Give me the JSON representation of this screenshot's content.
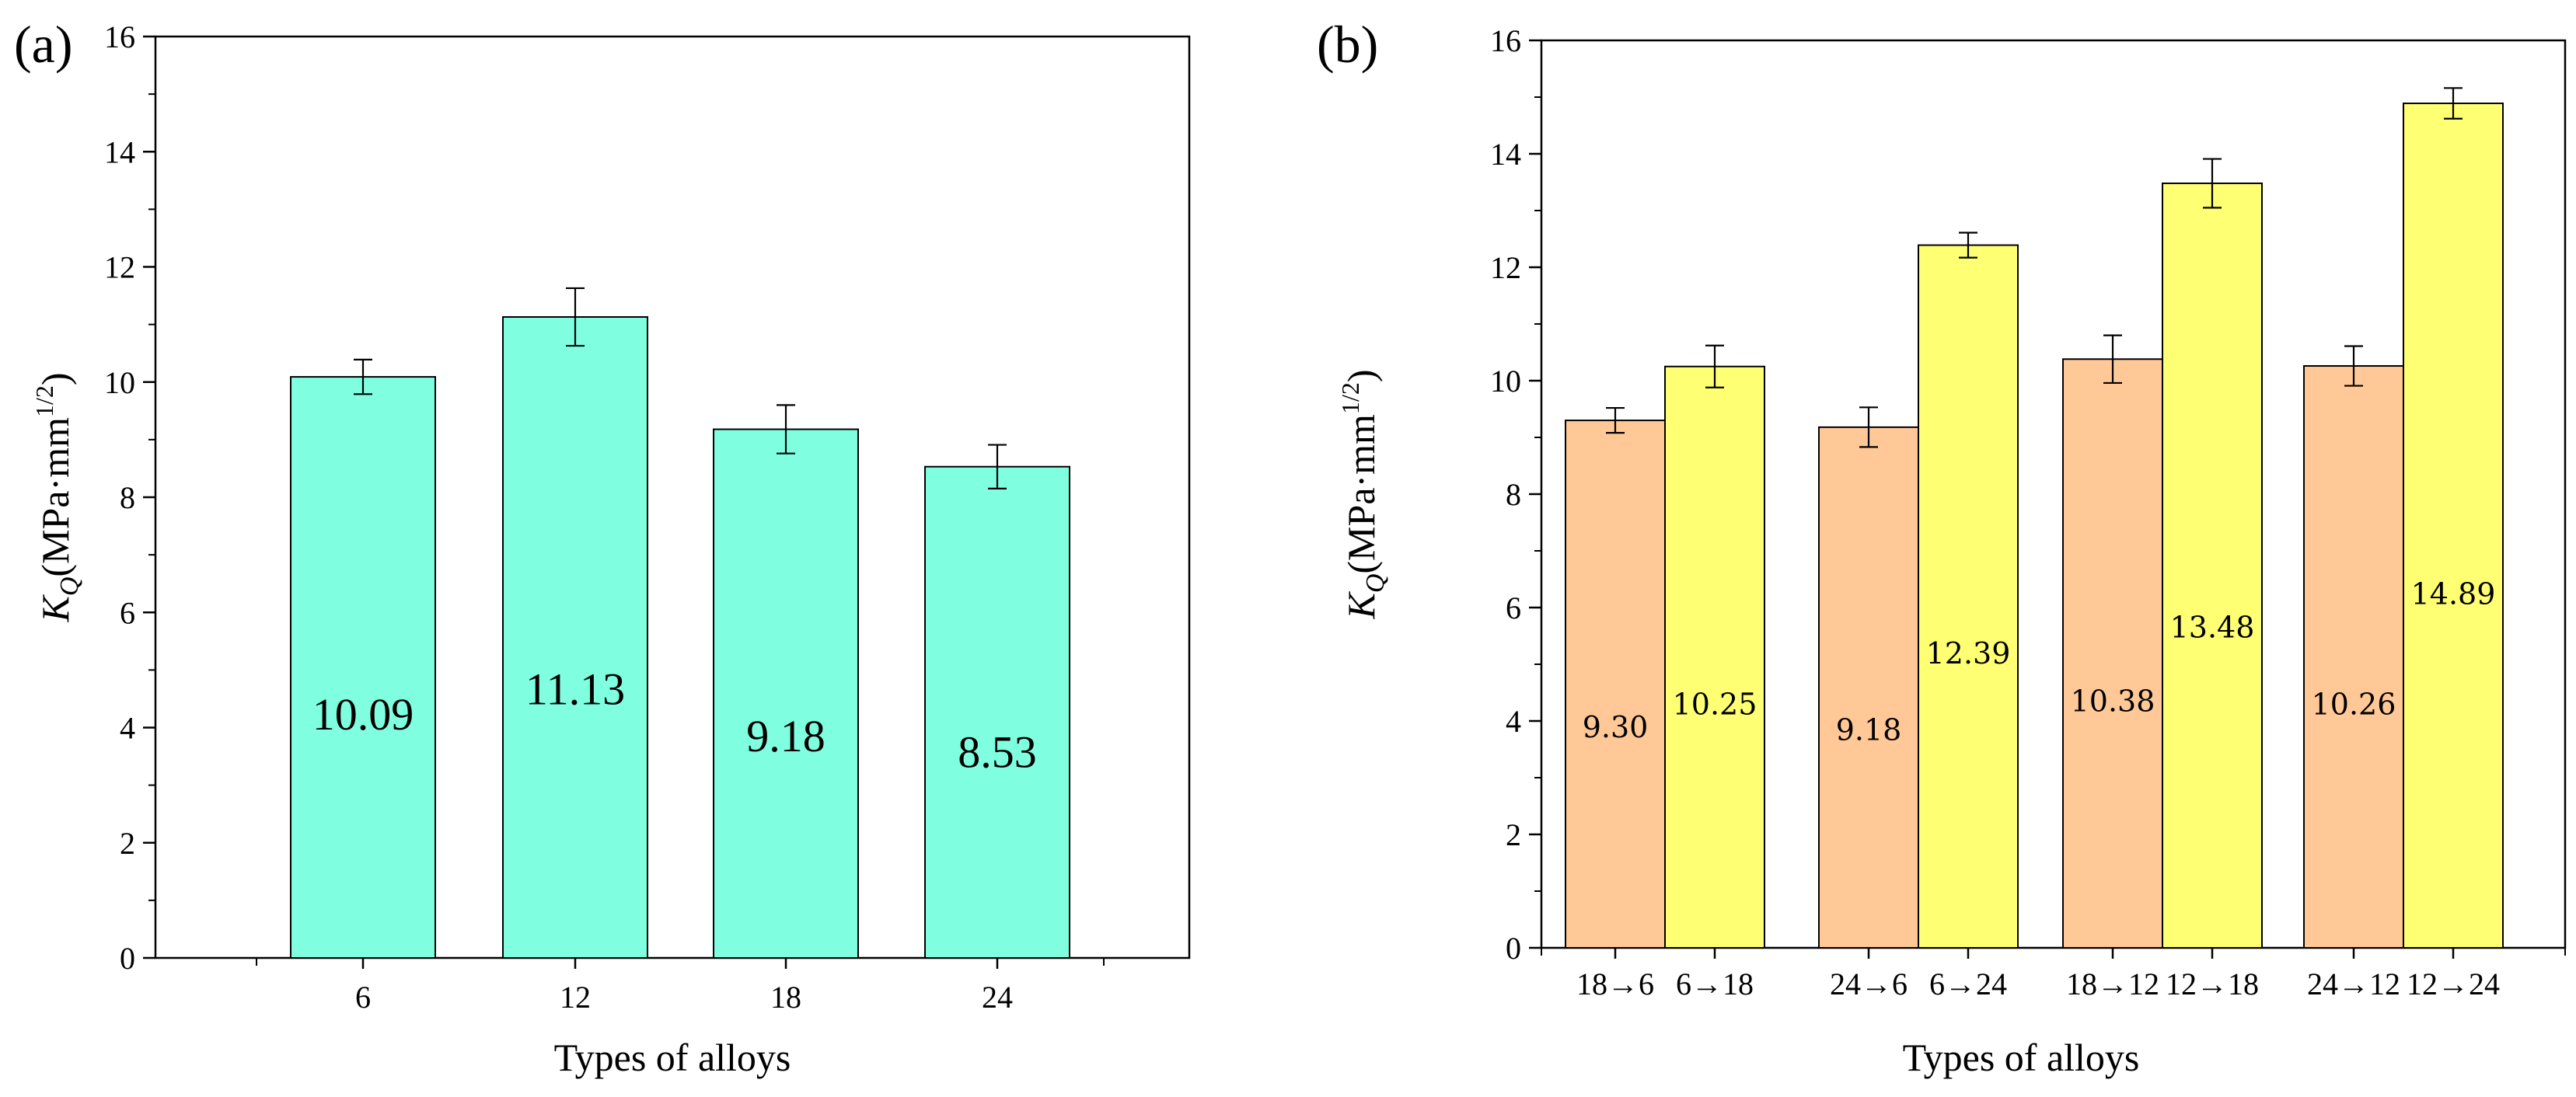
{
  "chart_data": [
    {
      "panel_label": "(a)",
      "type": "bar",
      "categories": [
        "6",
        "12",
        "18",
        "24"
      ],
      "series": [
        {
          "values": [
            10.09,
            11.13,
            9.18,
            8.53
          ],
          "value_labels": [
            "10.09",
            "11.13",
            "9.18",
            "8.53"
          ],
          "errors": [
            0.3,
            0.5,
            0.42,
            0.38
          ],
          "color": "#7FFFE0"
        }
      ],
      "xlabel": "Types of alloys",
      "ylabel_main": "K",
      "ylabel_sub": "Q",
      "ylabel_unit": "(MPa·mm",
      "ylabel_sup": "1/2",
      "ylabel_close": ")",
      "ylim": [
        0,
        16
      ],
      "yticks": [
        "0",
        "2",
        "4",
        "6",
        "8",
        "10",
        "12",
        "14",
        "16"
      ],
      "grid": false,
      "legend": "none"
    },
    {
      "panel_label": "(b)",
      "type": "bar",
      "groups": [
        {
          "bars": [
            {
              "category": "18→6",
              "value": 9.3,
              "label": "9.30",
              "error": 0.22,
              "color": "#FFC896"
            },
            {
              "category": "6→18",
              "value": 10.25,
              "label": "10.25",
              "error": 0.37,
              "color": "#FFFF73"
            }
          ]
        },
        {
          "bars": [
            {
              "category": "24→6",
              "value": 9.18,
              "label": "9.18",
              "error": 0.35,
              "color": "#FFC896"
            },
            {
              "category": "6→24",
              "value": 12.39,
              "label": "12.39",
              "error": 0.22,
              "color": "#FFFF73"
            }
          ]
        },
        {
          "bars": [
            {
              "category": "18→12",
              "value": 10.38,
              "label": "10.38",
              "error": 0.42,
              "color": "#FFC896"
            },
            {
              "category": "12→18",
              "value": 13.48,
              "label": "13.48",
              "error": 0.43,
              "color": "#FFFF73"
            }
          ]
        },
        {
          "bars": [
            {
              "category": "24→12",
              "value": 10.26,
              "label": "10.26",
              "error": 0.35,
              "color": "#FFC896"
            },
            {
              "category": "12→24",
              "value": 14.89,
              "label": "14.89",
              "error": 0.27,
              "color": "#FFFF73"
            }
          ]
        }
      ],
      "xlabel": "Types of alloys",
      "ylabel_main": "K",
      "ylabel_sub": "Q",
      "ylabel_unit": "(MPa·mm",
      "ylabel_sup": "1/2",
      "ylabel_close": ")",
      "ylim": [
        0,
        16
      ],
      "yticks": [
        "0",
        "2",
        "4",
        "6",
        "8",
        "10",
        "12",
        "14",
        "16"
      ],
      "grid": false,
      "legend": "none"
    }
  ]
}
